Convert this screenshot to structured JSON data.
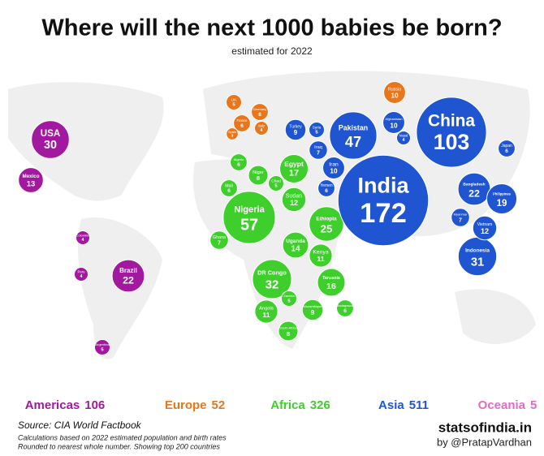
{
  "title": "Where will the next 1000 babies be born?",
  "subtitle": "estimated for 2022",
  "regions": [
    {
      "name": "Americas",
      "total": 106,
      "color": "#a2189f",
      "countries": [
        {
          "name": "USA",
          "value": 30
        },
        {
          "name": "Mexico",
          "value": 13
        },
        {
          "name": "Brazil",
          "value": 22
        },
        {
          "name": "Colombia",
          "value": 4
        },
        {
          "name": "Peru",
          "value": 4
        },
        {
          "name": "Argentina",
          "value": 5
        }
      ]
    },
    {
      "name": "Europe",
      "total": 52,
      "color": "#e9761b",
      "countries": [
        {
          "name": "UK",
          "value": 5
        },
        {
          "name": "Germany",
          "value": 6
        },
        {
          "name": "France",
          "value": 6
        },
        {
          "name": "Italy",
          "value": 4
        },
        {
          "name": "Spain",
          "value": 3
        },
        {
          "name": "Russia",
          "value": 10
        }
      ]
    },
    {
      "name": "Africa",
      "total": 326,
      "color": "#3fcf2c",
      "countries": [
        {
          "name": "Nigeria",
          "value": 57
        },
        {
          "name": "Egypt",
          "value": 17
        },
        {
          "name": "Ethiopia",
          "value": 25
        },
        {
          "name": "DR Congo",
          "value": 32
        },
        {
          "name": "Tanzania",
          "value": 16
        },
        {
          "name": "Sudan",
          "value": 12
        },
        {
          "name": "Uganda",
          "value": 14
        },
        {
          "name": "Kenya",
          "value": 11
        },
        {
          "name": "Angola",
          "value": 11
        },
        {
          "name": "Niger",
          "value": 8
        },
        {
          "name": "Mali",
          "value": 6
        },
        {
          "name": "Algeria",
          "value": 6
        },
        {
          "name": "Chad",
          "value": 5
        },
        {
          "name": "Ghana",
          "value": 7
        },
        {
          "name": "South Africa",
          "value": 8
        },
        {
          "name": "Mozambique",
          "value": 9
        },
        {
          "name": "Zambia",
          "value": 5
        },
        {
          "name": "Madagascar",
          "value": 6
        }
      ]
    },
    {
      "name": "Asia",
      "total": 511,
      "color": "#1f55d0",
      "countries": [
        {
          "name": "India",
          "value": 172
        },
        {
          "name": "China",
          "value": 103
        },
        {
          "name": "Pakistan",
          "value": 47
        },
        {
          "name": "Bangladesh",
          "value": 22
        },
        {
          "name": "Indonesia",
          "value": 31
        },
        {
          "name": "Philippines",
          "value": 19
        },
        {
          "name": "Vietnam",
          "value": 12
        },
        {
          "name": "Iraq",
          "value": 7
        },
        {
          "name": "Iran",
          "value": 10
        },
        {
          "name": "Turkey",
          "value": 9
        },
        {
          "name": "Afghanistan",
          "value": 10
        },
        {
          "name": "Yemen",
          "value": 6
        },
        {
          "name": "Syria",
          "value": 5
        },
        {
          "name": "Japan",
          "value": 6
        },
        {
          "name": "Myanmar",
          "value": 7
        },
        {
          "name": "Nepal",
          "value": 4
        }
      ]
    },
    {
      "name": "Oceania",
      "total": 5,
      "color": "#e868c8",
      "countries": []
    }
  ],
  "footer": {
    "source": "Source: CIA World Factbook",
    "note1": "Calculations based on 2022 estimated population and birth rates",
    "note2": "Rounded to nearest whole number. Showing top 200 countries",
    "brand": "statsofindia.in",
    "author": "by @PratapVardhan"
  }
}
